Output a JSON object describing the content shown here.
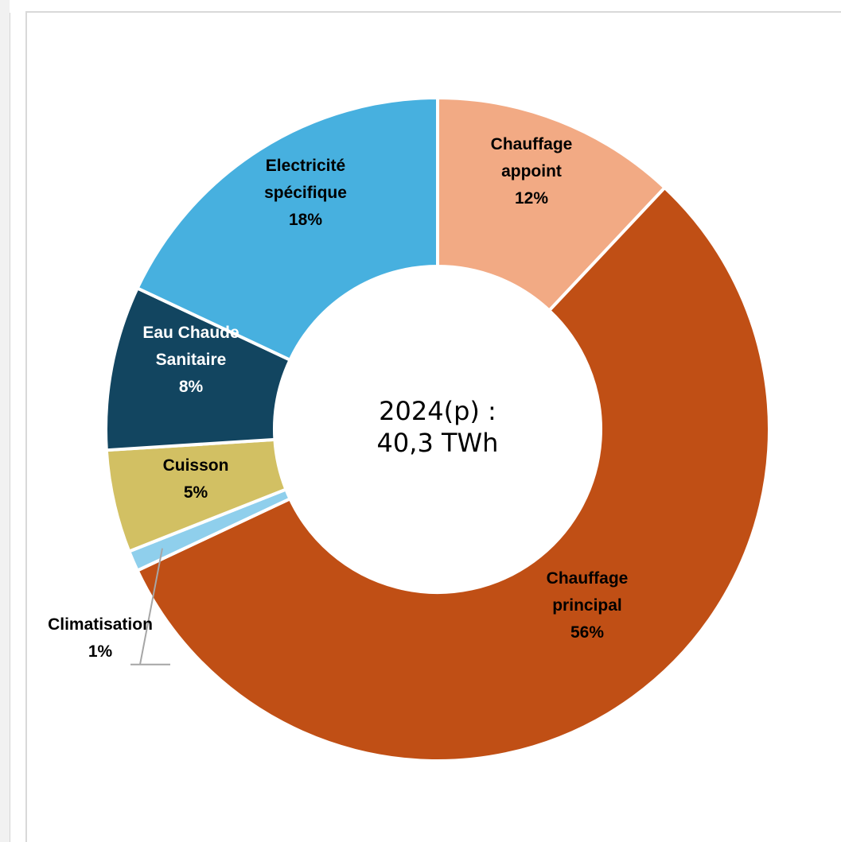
{
  "chart_data": {
    "type": "pie",
    "variant": "donut",
    "center_label": [
      "2024(p) :",
      "40,3 TWh"
    ],
    "slices": [
      {
        "name": "Chauffage appoint",
        "label_lines": [
          "Chauffage",
          "appoint"
        ],
        "value": 12,
        "value_label": "12%",
        "color": "#f2aa84",
        "label_color": "#000000"
      },
      {
        "name": "Chauffage principal",
        "label_lines": [
          "Chauffage",
          "principal"
        ],
        "value": 56,
        "value_label": "56%",
        "color": "#c04f15",
        "label_color": "#000000"
      },
      {
        "name": "Climatisation",
        "label_lines": [
          "Climatisation"
        ],
        "value": 1,
        "value_label": "1%",
        "color": "#8fcfec",
        "label_color": "#000000"
      },
      {
        "name": "Cuisson",
        "label_lines": [
          "Cuisson"
        ],
        "value": 5,
        "value_label": "5%",
        "color": "#d2c063",
        "label_color": "#000000"
      },
      {
        "name": "Eau Chaude Sanitaire",
        "label_lines": [
          "Eau Chaude",
          "Sanitaire"
        ],
        "value": 8,
        "value_label": "8%",
        "color": "#124560",
        "label_color": "#ffffff"
      },
      {
        "name": "Electricité spécifique",
        "label_lines": [
          "Electricité",
          "spécifique"
        ],
        "value": 18,
        "value_label": "18%",
        "color": "#47b0df",
        "label_color": "#000000"
      }
    ]
  }
}
